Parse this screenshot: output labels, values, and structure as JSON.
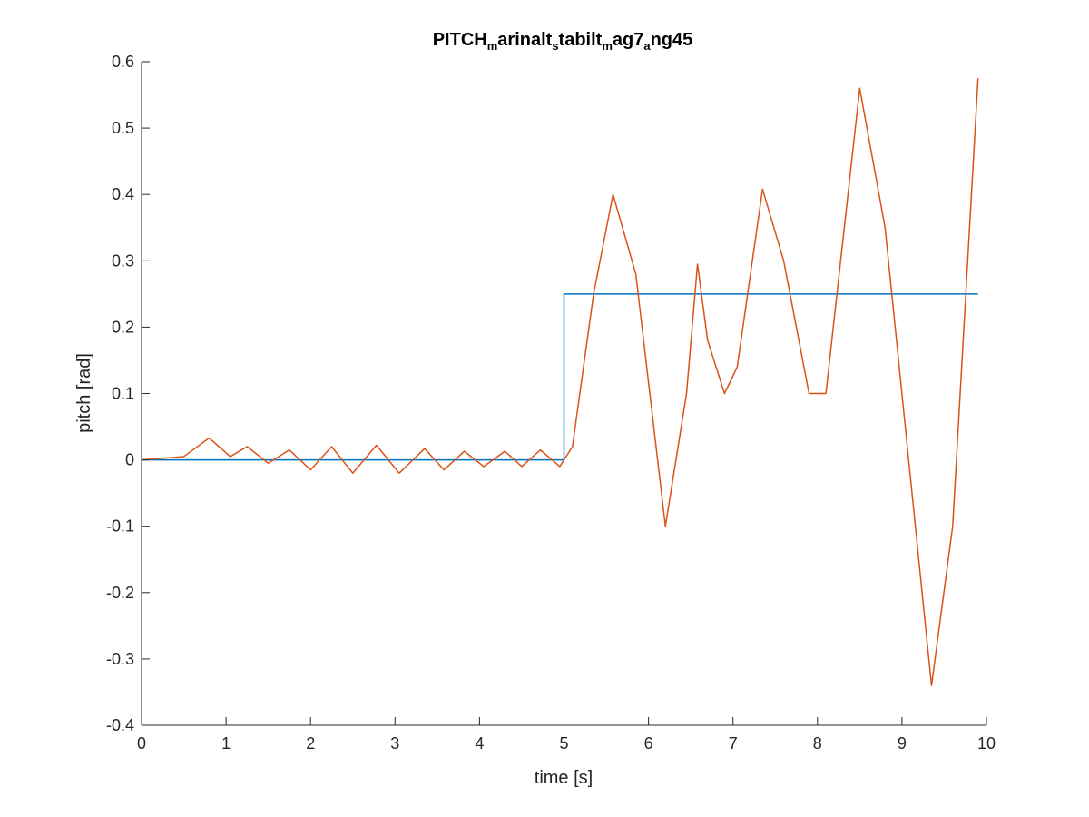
{
  "chart_data": {
    "type": "line",
    "title_parts": [
      {
        "text": "PITCH",
        "sub": false
      },
      {
        "text": "m",
        "sub": true
      },
      {
        "text": "arinalt",
        "sub": false
      },
      {
        "text": "s",
        "sub": true
      },
      {
        "text": "tabilt",
        "sub": false
      },
      {
        "text": "m",
        "sub": true
      },
      {
        "text": "ag7",
        "sub": false
      },
      {
        "text": "a",
        "sub": true
      },
      {
        "text": "ng45",
        "sub": false
      }
    ],
    "xlabel": "time [s]",
    "ylabel": "pitch [rad]",
    "xlim": [
      0,
      10
    ],
    "ylim": [
      -0.4,
      0.6
    ],
    "xticks": [
      0,
      1,
      2,
      3,
      4,
      5,
      6,
      7,
      8,
      9,
      10
    ],
    "xtick_labels": [
      "0",
      "1",
      "2",
      "3",
      "4",
      "5",
      "6",
      "7",
      "8",
      "9",
      "10"
    ],
    "yticks": [
      -0.4,
      -0.3,
      -0.2,
      -0.1,
      0,
      0.1,
      0.2,
      0.3,
      0.4,
      0.5,
      0.6
    ],
    "ytick_labels": [
      "-0.4",
      "-0.3",
      "-0.2",
      "-0.1",
      "0",
      "0.1",
      "0.2",
      "0.3",
      "0.4",
      "0.5",
      "0.6"
    ],
    "grid": false,
    "legend": "none",
    "series": [
      {
        "color": "#0072BD",
        "x": [
          0,
          5.0,
          5.0,
          9.9
        ],
        "y": [
          0,
          0,
          0.25,
          0.25
        ]
      },
      {
        "color": "#D95319",
        "x": [
          0,
          0.5,
          0.8,
          1.05,
          1.25,
          1.5,
          1.75,
          2.0,
          2.25,
          2.5,
          2.78,
          3.05,
          3.35,
          3.58,
          3.82,
          4.05,
          4.3,
          4.5,
          4.72,
          4.95,
          5.1,
          5.35,
          5.58,
          5.85,
          6.2,
          6.45,
          6.58,
          6.7,
          6.9,
          7.05,
          7.35,
          7.6,
          7.9,
          8.1,
          8.5,
          8.8,
          9.35,
          9.6,
          9.9
        ],
        "y": [
          0,
          0.005,
          0.033,
          0.005,
          0.02,
          -0.005,
          0.015,
          -0.015,
          0.02,
          -0.02,
          0.022,
          -0.02,
          0.017,
          -0.015,
          0.013,
          -0.01,
          0.013,
          -0.01,
          0.015,
          -0.01,
          0.02,
          0.25,
          0.4,
          0.28,
          -0.1,
          0.1,
          0.295,
          0.18,
          0.1,
          0.14,
          0.408,
          0.3,
          0.1,
          0.1,
          0.56,
          0.35,
          -0.34,
          -0.1,
          0.575
        ]
      }
    ]
  }
}
